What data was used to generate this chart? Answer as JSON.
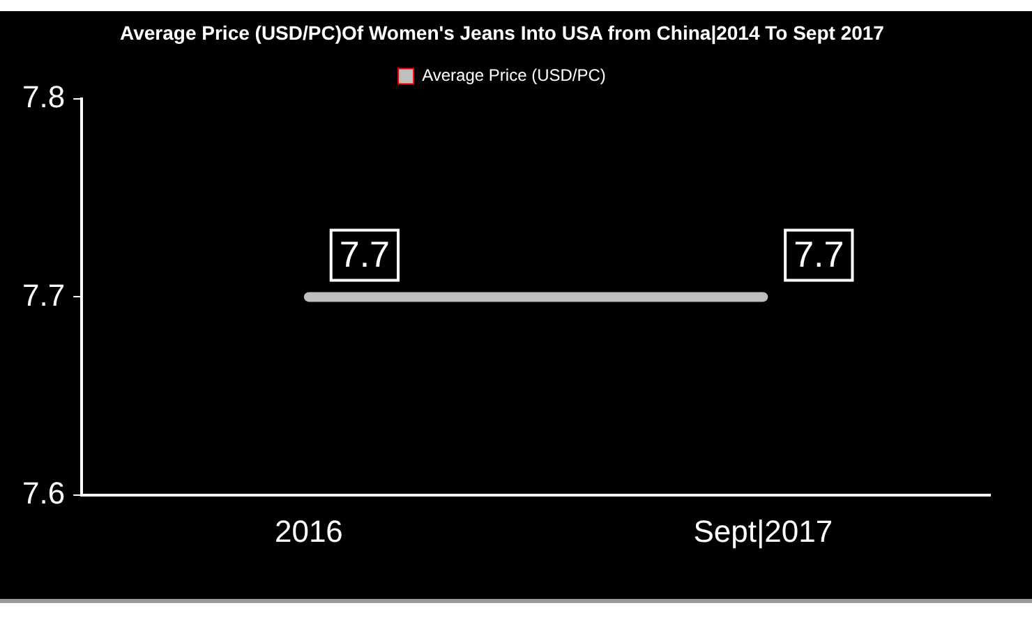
{
  "chart_data": {
    "type": "line",
    "title": "Average Price (USD/PC)Of Women's Jeans Into USA from China|2014 To Sept 2017",
    "categories": [
      "2016",
      "Sept|2017"
    ],
    "series": [
      {
        "name": "Average Price (USD/PC)",
        "color": "#bfbfbf",
        "values": [
          7.7,
          7.7
        ]
      }
    ],
    "ylim": [
      7.6,
      7.8
    ],
    "yticks": [
      7.6,
      7.7,
      7.8
    ],
    "grid": false,
    "legend": "top",
    "data_labels": true
  }
}
